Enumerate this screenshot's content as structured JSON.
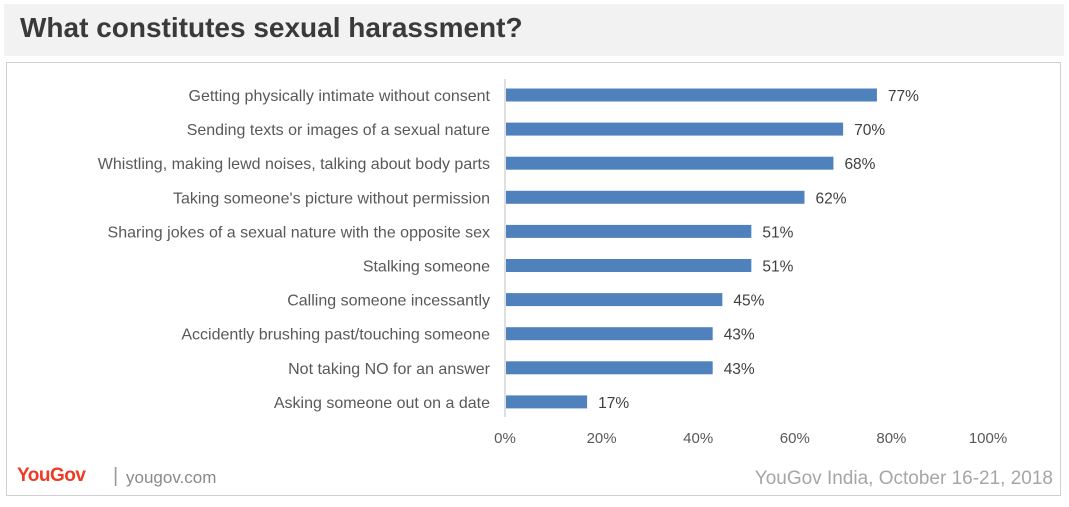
{
  "header": {
    "title": "What constitutes sexual harassment?"
  },
  "footer": {
    "brand": "YouGov",
    "separator": "|",
    "site": "yougov.com",
    "source": "YouGov India, October 16-21, 2018"
  },
  "colors": {
    "bar": "#4f81bd",
    "brand": "#ef3b24",
    "axis": "#bfbfbf",
    "label_text": "#595959",
    "value_text": "#404040"
  },
  "chart_data": {
    "type": "bar",
    "orientation": "horizontal",
    "title": "",
    "xlabel": "",
    "ylabel": "",
    "xlim": [
      0,
      100
    ],
    "x_ticks": [
      "0%",
      "20%",
      "40%",
      "60%",
      "80%",
      "100%"
    ],
    "tick_values": [
      0,
      20,
      40,
      60,
      80,
      100
    ],
    "grid": false,
    "categories": [
      "Getting physically intimate without consent",
      "Sending texts or images of a sexual nature",
      "Whistling, making lewd noises, talking about body parts",
      "Taking someone's picture without permission",
      "Sharing jokes of a sexual nature with the opposite sex",
      "Stalking someone",
      "Calling someone incessantly",
      "Accidently brushing past/touching someone",
      "Not taking NO for an answer",
      "Asking someone out on a date"
    ],
    "values": [
      77,
      70,
      68,
      62,
      51,
      51,
      45,
      43,
      43,
      17
    ],
    "value_labels": [
      "77%",
      "70%",
      "68%",
      "62%",
      "51%",
      "51%",
      "45%",
      "43%",
      "43%",
      "17%"
    ]
  }
}
